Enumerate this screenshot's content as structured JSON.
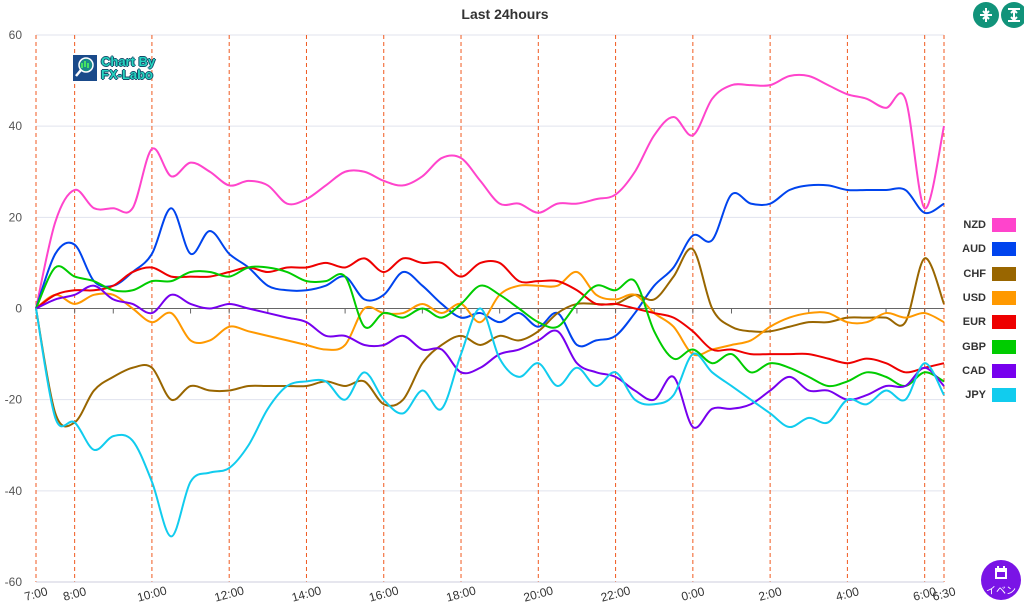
{
  "header": {
    "title": "Last 24hours"
  },
  "toolbar": {
    "collapse_icon": "compress-vertical-icon",
    "expand_icon": "expand-vertical-icon"
  },
  "logo": {
    "line1": "Chart By",
    "line2": "FX-Labo"
  },
  "event_button": {
    "label": "イベン",
    "icon": "calendar-icon",
    "color": "#7a14e6"
  },
  "chart_data": {
    "type": "line",
    "title": "Last 24hours",
    "xlabel": "",
    "ylabel": "",
    "ylim": [
      -60,
      60
    ],
    "yticks": [
      60,
      40,
      20,
      0,
      -20,
      -40,
      -60
    ],
    "x": [
      "7:00",
      "7:30",
      "8:00",
      "8:30",
      "9:00",
      "9:30",
      "10:00",
      "10:30",
      "11:00",
      "11:30",
      "12:00",
      "12:30",
      "13:00",
      "13:30",
      "14:00",
      "14:30",
      "15:00",
      "15:30",
      "16:00",
      "16:30",
      "17:00",
      "17:30",
      "18:00",
      "18:30",
      "19:00",
      "19:30",
      "20:00",
      "20:30",
      "21:00",
      "21:30",
      "22:00",
      "22:30",
      "23:00",
      "23:30",
      "0:00",
      "0:30",
      "1:00",
      "1:30",
      "2:00",
      "2:30",
      "3:00",
      "3:30",
      "4:00",
      "4:30",
      "5:00",
      "5:30",
      "6:00",
      "6:30"
    ],
    "xticks": [
      {
        "label": "7:00",
        "index": 0
      },
      {
        "label": "8:00",
        "index": 2
      },
      {
        "label": "10:00",
        "index": 6
      },
      {
        "label": "12:00",
        "index": 10
      },
      {
        "label": "14:00",
        "index": 14
      },
      {
        "label": "16:00",
        "index": 18
      },
      {
        "label": "18:00",
        "index": 22
      },
      {
        "label": "20:00",
        "index": 26
      },
      {
        "label": "22:00",
        "index": 30
      },
      {
        "label": "0:00",
        "index": 34
      },
      {
        "label": "2:00",
        "index": 38
      },
      {
        "label": "4:00",
        "index": 42
      },
      {
        "label": "6:00",
        "index": 46
      },
      {
        "label": "6:30",
        "index": 47
      }
    ],
    "grid": true,
    "legend_position": "right",
    "series": [
      {
        "name": "NZD",
        "color": "#ff44cc",
        "values": [
          0,
          19,
          26,
          22,
          22,
          22,
          35,
          29,
          32,
          30,
          27,
          28,
          27,
          23,
          24,
          27,
          30,
          30,
          28,
          27,
          29,
          33,
          33,
          28,
          23,
          23,
          21,
          23,
          23,
          24,
          25,
          30,
          38,
          42,
          38,
          46,
          49,
          49,
          49,
          51,
          51,
          49,
          47,
          46,
          44,
          46,
          22,
          40
        ]
      },
      {
        "name": "AUD",
        "color": "#0044ee",
        "values": [
          0,
          12,
          14,
          6,
          5,
          8,
          12,
          22,
          12,
          17,
          12,
          9,
          5,
          4,
          4,
          5,
          7,
          2,
          3,
          8,
          5,
          1,
          -2,
          -1,
          -3,
          -1,
          -4,
          -1,
          -8,
          -7,
          -6,
          -1,
          5,
          9,
          16,
          15,
          25,
          23,
          23,
          26,
          27,
          27,
          26,
          26,
          26,
          26,
          21,
          23
        ]
      },
      {
        "name": "CHF",
        "color": "#996600",
        "values": [
          0,
          -23,
          -25,
          -18,
          -15,
          -13,
          -13,
          -20,
          -17,
          -18,
          -18,
          -17,
          -17,
          -17,
          -17,
          -16,
          -17,
          -16,
          -21,
          -20,
          -12,
          -8,
          -6,
          -8,
          -6,
          -7,
          -5,
          -1,
          1,
          1,
          1,
          3,
          2,
          7,
          13,
          0,
          -4,
          -5,
          -5,
          -4,
          -3,
          -3,
          -2,
          -2,
          -2,
          -3,
          11,
          1
        ]
      },
      {
        "name": "USD",
        "color": "#ff9900",
        "values": [
          0,
          3,
          1,
          3,
          3,
          0,
          -3,
          -1,
          -7,
          -7,
          -4,
          -5,
          -6,
          -7,
          -8,
          -9,
          -8,
          0,
          -1,
          -1,
          1,
          -1,
          1,
          -3,
          3,
          5,
          5,
          5,
          8,
          3,
          2,
          3,
          -1,
          -4,
          -10,
          -9,
          -8,
          -7,
          -4,
          -2,
          -1,
          -1,
          -3,
          -3,
          -1,
          -2,
          -1,
          -3
        ]
      },
      {
        "name": "EUR",
        "color": "#ee0000",
        "values": [
          0,
          3,
          4,
          4,
          5,
          8,
          9,
          7,
          7,
          7,
          8,
          9,
          8,
          9,
          9,
          10,
          9,
          11,
          8,
          11,
          10,
          10,
          7,
          10,
          10,
          6,
          6,
          6,
          4,
          1,
          1,
          0,
          -1,
          -2,
          -5,
          -9,
          -9,
          -10,
          -10,
          -10,
          -10,
          -11,
          -12,
          -11,
          -12,
          -14,
          -13,
          -12
        ]
      },
      {
        "name": "GBP",
        "color": "#00cc00",
        "values": [
          0,
          9,
          7,
          6,
          4,
          4,
          6,
          6,
          8,
          8,
          7,
          9,
          9,
          8,
          6,
          6,
          7,
          -4,
          -1,
          -2,
          0,
          -2,
          1,
          5,
          3,
          0,
          -3,
          -4,
          1,
          5,
          4,
          6,
          -5,
          -11,
          -9,
          -12,
          -10,
          -14,
          -12,
          -13,
          -15,
          -17,
          -16,
          -14,
          -15,
          -17,
          -14,
          -16
        ]
      },
      {
        "name": "CAD",
        "color": "#7700ee",
        "values": [
          0,
          2,
          3,
          5,
          2,
          1,
          -1,
          3,
          1,
          0,
          1,
          0,
          -1,
          -2,
          -3,
          -6,
          -6,
          -8,
          -8,
          -6,
          -9,
          -9,
          -14,
          -13,
          -10,
          -9,
          -7,
          -5,
          -12,
          -14,
          -15,
          -18,
          -20,
          -15,
          -26,
          -22,
          -22,
          -21,
          -18,
          -15,
          -18,
          -18,
          -20,
          -19,
          -17,
          -17,
          -13,
          -17
        ]
      },
      {
        "name": "JPY",
        "color": "#11ccee",
        "values": [
          0,
          -24,
          -25,
          -31,
          -28,
          -29,
          -38,
          -50,
          -38,
          -36,
          -35,
          -30,
          -22,
          -17,
          -16,
          -16,
          -20,
          -14,
          -20,
          -23,
          -18,
          -22,
          -10,
          0,
          -11,
          -15,
          -12,
          -17,
          -13,
          -17,
          -14,
          -20,
          -21,
          -19,
          -10,
          -14,
          -17,
          -20,
          -23,
          -26,
          -24,
          -25,
          -20,
          -21,
          -18,
          -20,
          -12,
          -19
        ]
      }
    ]
  }
}
